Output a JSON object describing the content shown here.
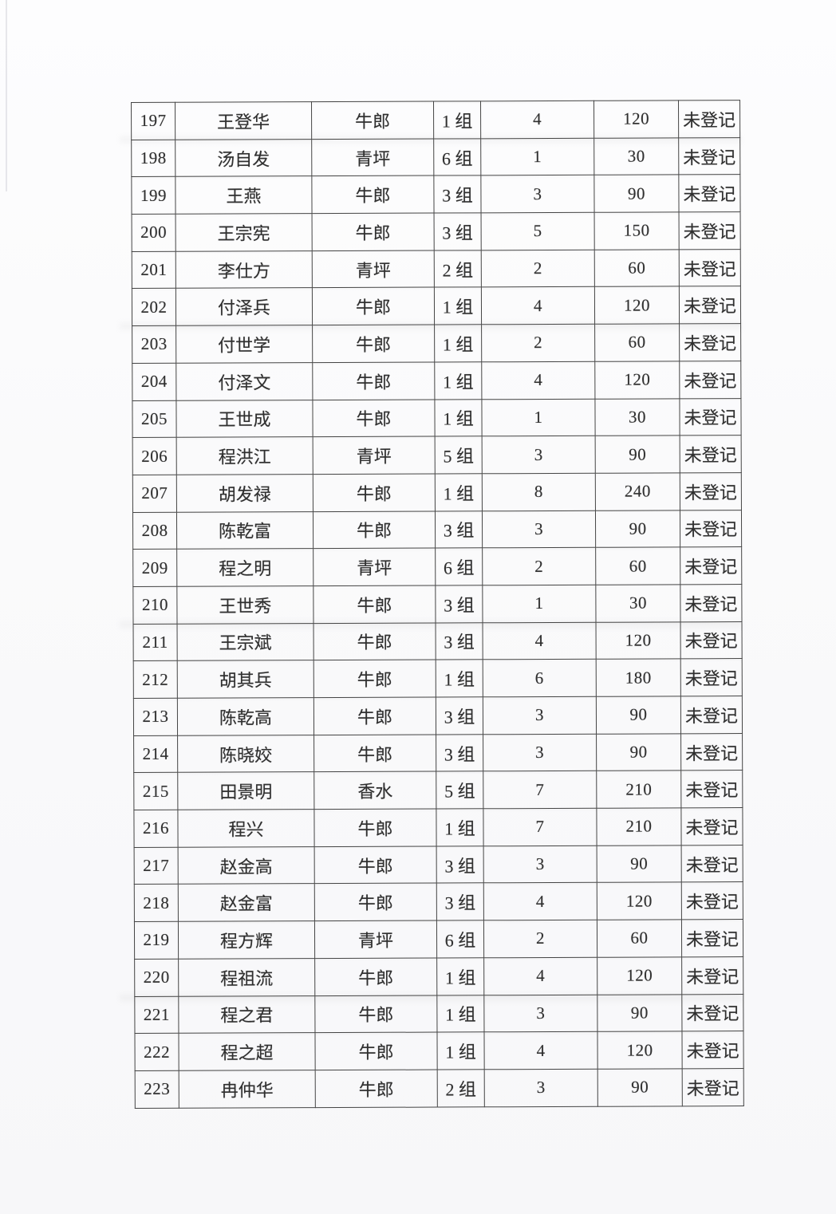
{
  "colors": {
    "ink": "#2f2f2f",
    "line": "#454545",
    "page": "#fbfbfc"
  },
  "table": {
    "rows": [
      [
        "197",
        "王登华",
        "牛郎",
        "1 组",
        "4",
        "120",
        "未登记"
      ],
      [
        "198",
        "汤自发",
        "青坪",
        "6 组",
        "1",
        "30",
        "未登记"
      ],
      [
        "199",
        "王燕",
        "牛郎",
        "3 组",
        "3",
        "90",
        "未登记"
      ],
      [
        "200",
        "王宗宪",
        "牛郎",
        "3 组",
        "5",
        "150",
        "未登记"
      ],
      [
        "201",
        "李仕方",
        "青坪",
        "2 组",
        "2",
        "60",
        "未登记"
      ],
      [
        "202",
        "付泽兵",
        "牛郎",
        "1 组",
        "4",
        "120",
        "未登记"
      ],
      [
        "203",
        "付世学",
        "牛郎",
        "1 组",
        "2",
        "60",
        "未登记"
      ],
      [
        "204",
        "付泽文",
        "牛郎",
        "1 组",
        "4",
        "120",
        "未登记"
      ],
      [
        "205",
        "王世成",
        "牛郎",
        "1 组",
        "1",
        "30",
        "未登记"
      ],
      [
        "206",
        "程洪江",
        "青坪",
        "5 组",
        "3",
        "90",
        "未登记"
      ],
      [
        "207",
        "胡发禄",
        "牛郎",
        "1 组",
        "8",
        "240",
        "未登记"
      ],
      [
        "208",
        "陈乾富",
        "牛郎",
        "3 组",
        "3",
        "90",
        "未登记"
      ],
      [
        "209",
        "程之明",
        "青坪",
        "6 组",
        "2",
        "60",
        "未登记"
      ],
      [
        "210",
        "王世秀",
        "牛郎",
        "3 组",
        "1",
        "30",
        "未登记"
      ],
      [
        "211",
        "王宗斌",
        "牛郎",
        "3 组",
        "4",
        "120",
        "未登记"
      ],
      [
        "212",
        "胡其兵",
        "牛郎",
        "1 组",
        "6",
        "180",
        "未登记"
      ],
      [
        "213",
        "陈乾高",
        "牛郎",
        "3 组",
        "3",
        "90",
        "未登记"
      ],
      [
        "214",
        "陈晓姣",
        "牛郎",
        "3 组",
        "3",
        "90",
        "未登记"
      ],
      [
        "215",
        "田景明",
        "香水",
        "5 组",
        "7",
        "210",
        "未登记"
      ],
      [
        "216",
        "程兴",
        "牛郎",
        "1 组",
        "7",
        "210",
        "未登记"
      ],
      [
        "217",
        "赵金高",
        "牛郎",
        "3 组",
        "3",
        "90",
        "未登记"
      ],
      [
        "218",
        "赵金富",
        "牛郎",
        "3 组",
        "4",
        "120",
        "未登记"
      ],
      [
        "219",
        "程方辉",
        "青坪",
        "6 组",
        "2",
        "60",
        "未登记"
      ],
      [
        "220",
        "程祖流",
        "牛郎",
        "1 组",
        "4",
        "120",
        "未登记"
      ],
      [
        "221",
        "程之君",
        "牛郎",
        "1 组",
        "3",
        "90",
        "未登记"
      ],
      [
        "222",
        "程之超",
        "牛郎",
        "1 组",
        "4",
        "120",
        "未登记"
      ],
      [
        "223",
        "冉仲华",
        "牛郎",
        "2 组",
        "3",
        "90",
        "未登记"
      ]
    ]
  }
}
